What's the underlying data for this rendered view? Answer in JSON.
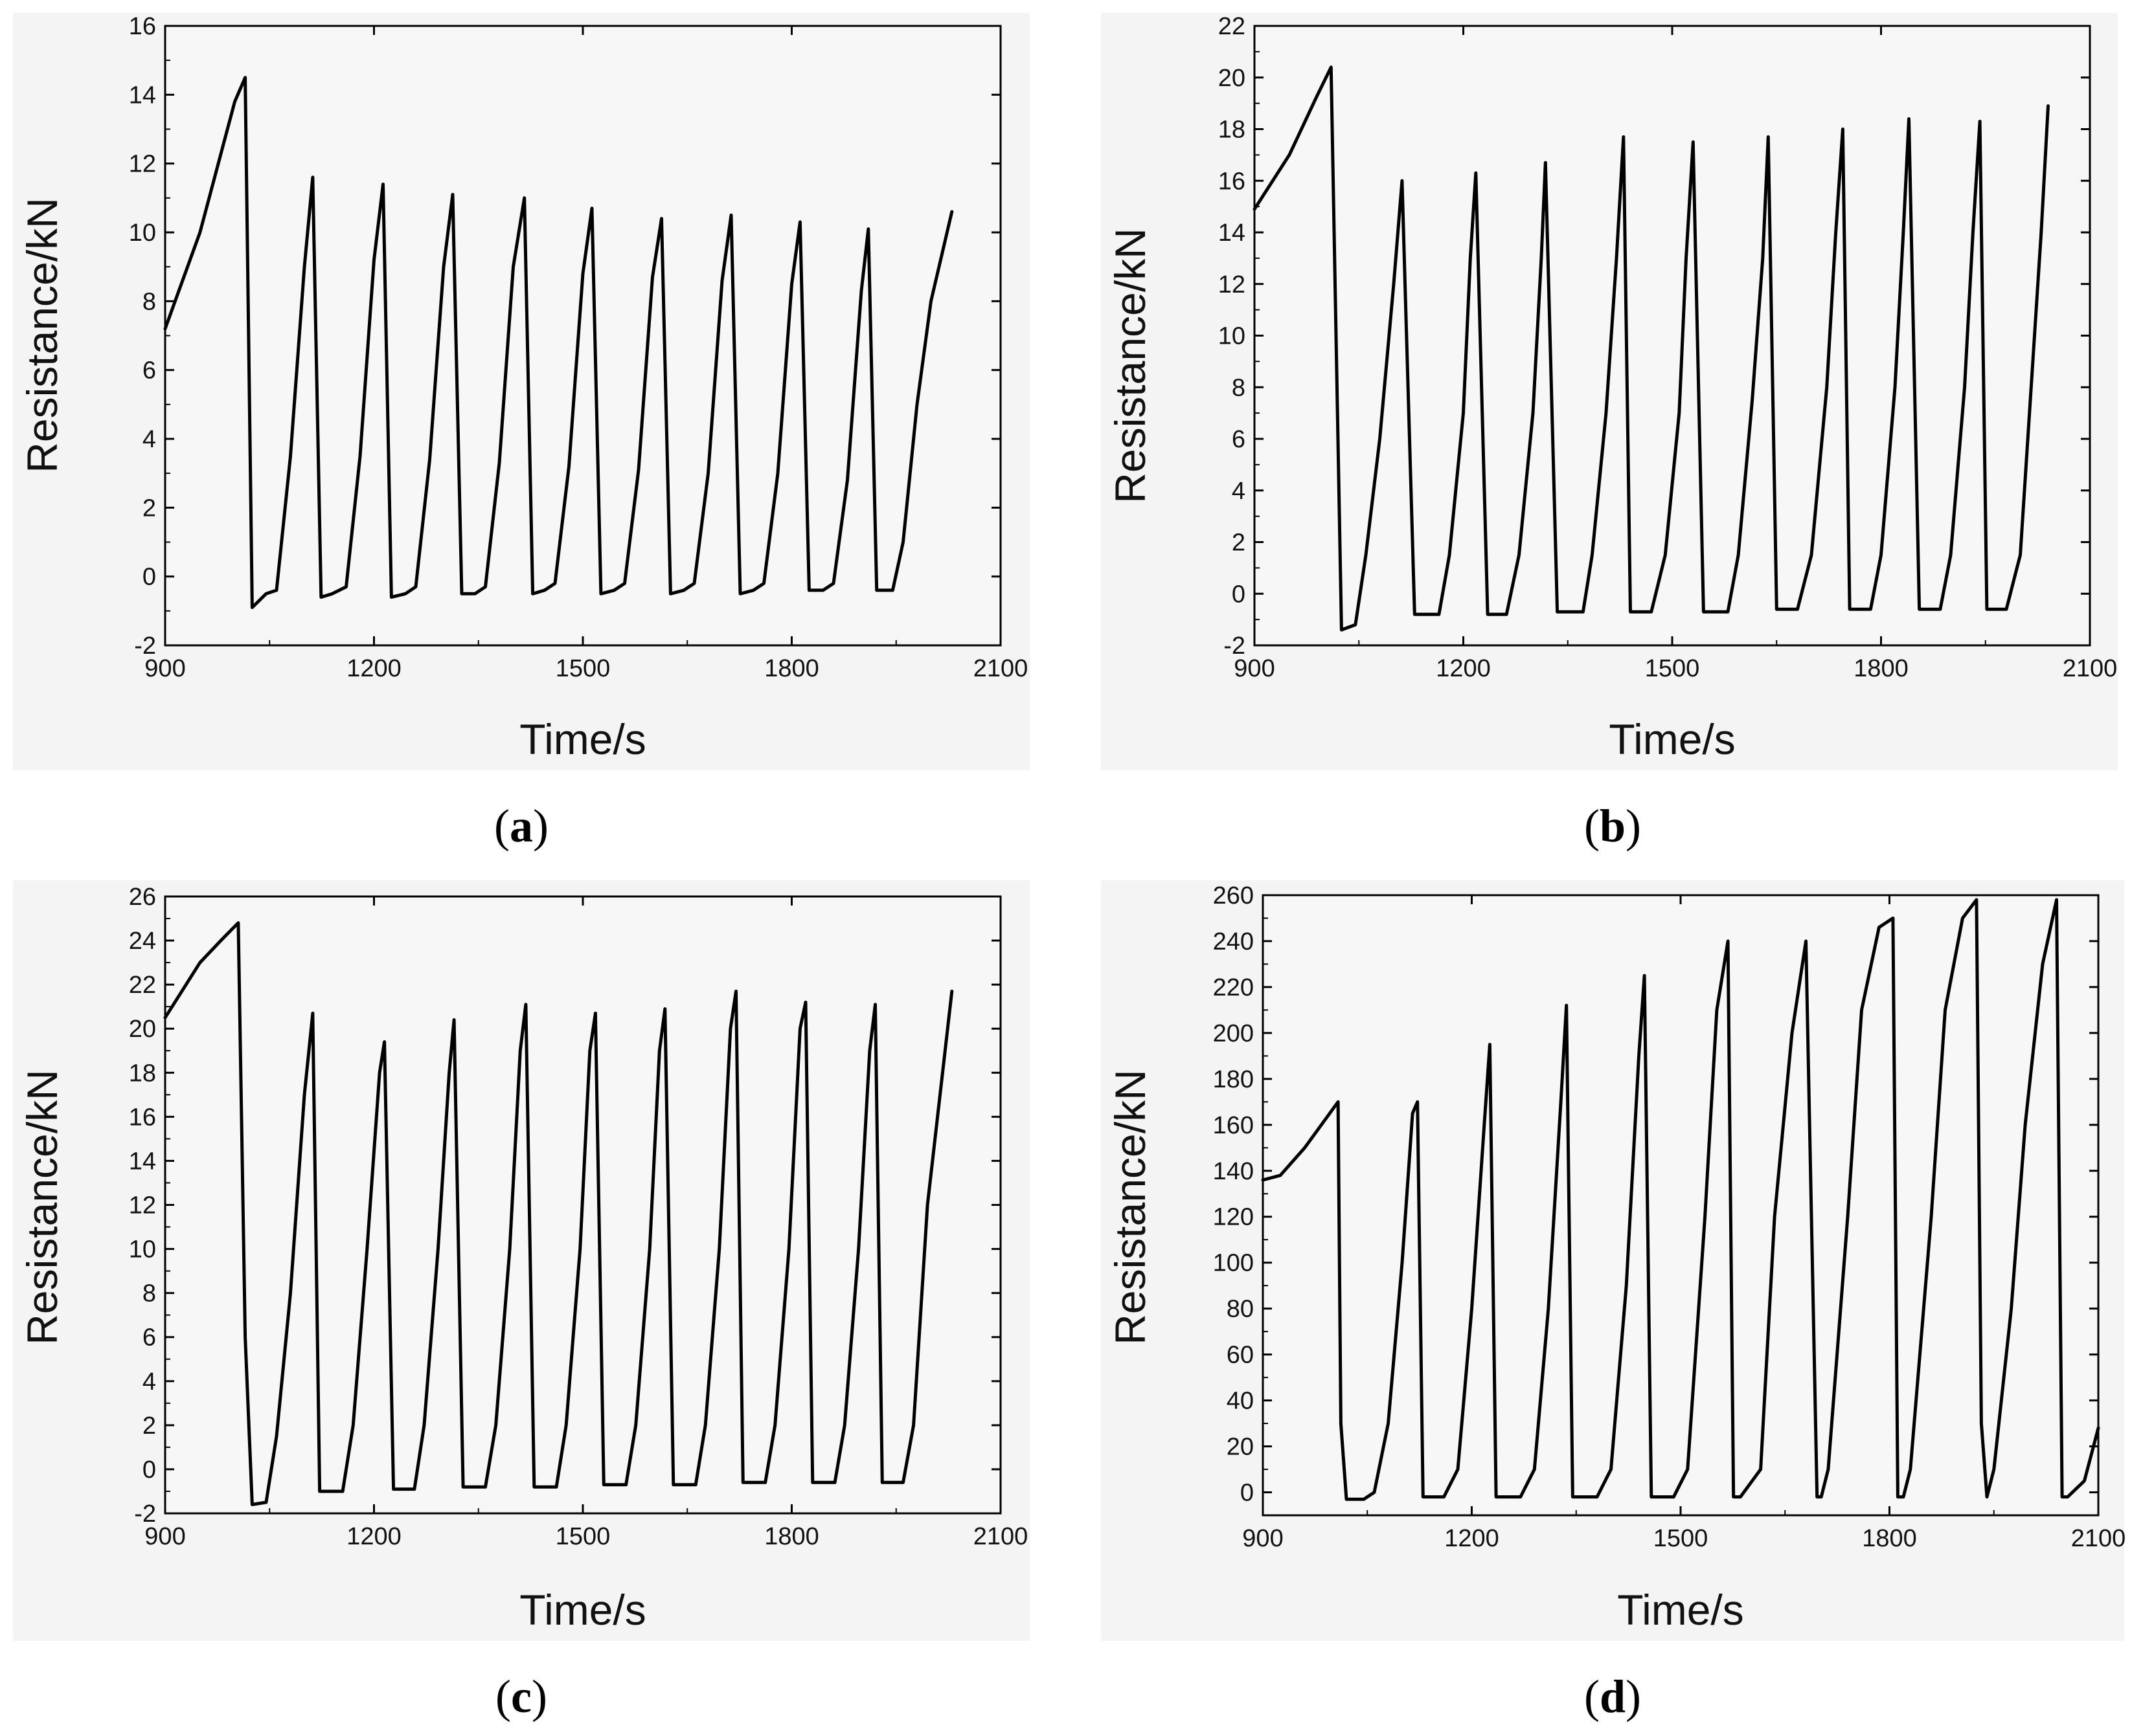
{
  "chart_data": [
    {
      "type": "line",
      "panel": "a",
      "caption_letter": "a",
      "xlabel": "Time/s",
      "ylabel": "Resistance/kN",
      "xlim": [
        900,
        2100
      ],
      "ylim": [
        -2,
        16
      ],
      "xticks": [
        900,
        1200,
        1500,
        1800,
        2100
      ],
      "yticks": [
        -2,
        0,
        2,
        4,
        6,
        8,
        10,
        12,
        14,
        16
      ],
      "series": [
        {
          "name": "Resistance",
          "x": [
            900,
            950,
            1000,
            1015,
            1025,
            1045,
            1060,
            1080,
            1100,
            1112,
            1124,
            1140,
            1160,
            1180,
            1200,
            1213,
            1225,
            1245,
            1260,
            1280,
            1300,
            1313,
            1326,
            1345,
            1360,
            1380,
            1400,
            1416,
            1428,
            1445,
            1460,
            1480,
            1500,
            1513,
            1526,
            1545,
            1560,
            1580,
            1600,
            1613,
            1626,
            1645,
            1660,
            1680,
            1700,
            1713,
            1726,
            1745,
            1760,
            1780,
            1800,
            1812,
            1825,
            1845,
            1860,
            1880,
            1900,
            1910,
            1922,
            1945,
            1960,
            1980,
            2000,
            2030
          ],
          "y": [
            7.2,
            10,
            13.8,
            14.5,
            -0.9,
            -0.5,
            -0.4,
            3.5,
            9,
            11.6,
            -0.6,
            -0.5,
            -0.3,
            3.5,
            9.2,
            11.4,
            -0.6,
            -0.5,
            -0.3,
            3.4,
            9,
            11.1,
            -0.5,
            -0.5,
            -0.3,
            3.3,
            9,
            11.0,
            -0.5,
            -0.4,
            -0.2,
            3.2,
            8.8,
            10.7,
            -0.5,
            -0.4,
            -0.2,
            3.1,
            8.7,
            10.4,
            -0.5,
            -0.4,
            -0.2,
            3.0,
            8.6,
            10.5,
            -0.5,
            -0.4,
            -0.2,
            3.0,
            8.5,
            10.3,
            -0.4,
            -0.4,
            -0.2,
            2.8,
            8.3,
            10.1,
            -0.4,
            -0.4,
            1.0,
            5.0,
            8.0,
            10.6
          ]
        }
      ]
    },
    {
      "type": "line",
      "panel": "b",
      "caption_letter": "b",
      "xlabel": "Time/s",
      "ylabel": "Resistance/kN",
      "xlim": [
        900,
        2100
      ],
      "ylim": [
        -2,
        22
      ],
      "xticks": [
        900,
        1200,
        1500,
        1800,
        2100
      ],
      "yticks": [
        -2,
        0,
        2,
        4,
        6,
        8,
        10,
        12,
        14,
        16,
        18,
        20,
        22
      ],
      "series": [
        {
          "name": "Resistance",
          "x": [
            900,
            950,
            990,
            1010,
            1025,
            1045,
            1060,
            1080,
            1100,
            1112,
            1130,
            1165,
            1180,
            1200,
            1210,
            1218,
            1235,
            1262,
            1280,
            1300,
            1312,
            1318,
            1335,
            1372,
            1385,
            1405,
            1420,
            1430,
            1440,
            1470,
            1490,
            1510,
            1520,
            1530,
            1545,
            1580,
            1595,
            1615,
            1630,
            1638,
            1650,
            1680,
            1700,
            1722,
            1735,
            1745,
            1755,
            1785,
            1800,
            1820,
            1832,
            1840,
            1855,
            1885,
            1900,
            1920,
            1932,
            1942,
            1952,
            1980,
            2000,
            2030,
            2040
          ],
          "y": [
            14.9,
            17,
            19.3,
            20.4,
            -1.4,
            -1.2,
            1.5,
            6,
            12,
            16.0,
            -0.8,
            -0.8,
            1.5,
            7,
            13,
            16.3,
            -0.8,
            -0.8,
            1.5,
            7,
            13,
            16.7,
            -0.7,
            -0.7,
            1.5,
            7,
            13,
            17.7,
            -0.7,
            -0.7,
            1.5,
            7,
            13,
            17.5,
            -0.7,
            -0.7,
            1.5,
            7.5,
            13,
            17.7,
            -0.6,
            -0.6,
            1.5,
            8,
            14,
            18.0,
            -0.6,
            -0.6,
            1.5,
            8,
            14,
            18.4,
            -0.6,
            -0.6,
            1.5,
            8,
            14,
            18.3,
            -0.6,
            -0.6,
            1.5,
            14,
            18.9
          ]
        }
      ]
    },
    {
      "type": "line",
      "panel": "c",
      "caption_letter": "c",
      "xlabel": "Time/s",
      "ylabel": "Resistance/kN",
      "xlim": [
        900,
        2100
      ],
      "ylim": [
        -2,
        26
      ],
      "xticks": [
        900,
        1200,
        1500,
        1800,
        2100
      ],
      "yticks": [
        -2,
        0,
        2,
        4,
        6,
        8,
        10,
        12,
        14,
        16,
        18,
        20,
        22,
        24,
        26
      ],
      "series": [
        {
          "name": "Resistance",
          "x": [
            900,
            950,
            980,
            1005,
            1015,
            1025,
            1045,
            1060,
            1080,
            1100,
            1112,
            1122,
            1155,
            1170,
            1190,
            1208,
            1215,
            1228,
            1258,
            1272,
            1292,
            1308,
            1315,
            1328,
            1360,
            1375,
            1395,
            1410,
            1418,
            1430,
            1462,
            1476,
            1496,
            1510,
            1518,
            1530,
            1562,
            1576,
            1596,
            1610,
            1618,
            1630,
            1662,
            1676,
            1696,
            1712,
            1720,
            1730,
            1762,
            1776,
            1796,
            1812,
            1820,
            1830,
            1862,
            1876,
            1896,
            1912,
            1920,
            1930,
            1960,
            1975,
            1995,
            2030
          ],
          "y": [
            20.5,
            23,
            24,
            24.8,
            6,
            -1.6,
            -1.5,
            1.5,
            8,
            17,
            20.7,
            -1.0,
            -1.0,
            2,
            10,
            18,
            19.4,
            -0.9,
            -0.9,
            2,
            10,
            18,
            20.4,
            -0.8,
            -0.8,
            2,
            10,
            19,
            21.1,
            -0.8,
            -0.8,
            2,
            10,
            19,
            20.7,
            -0.7,
            -0.7,
            2,
            10,
            19,
            20.9,
            -0.7,
            -0.7,
            2,
            10,
            20,
            21.7,
            -0.6,
            -0.6,
            2,
            10,
            20,
            21.2,
            -0.6,
            -0.6,
            2,
            10,
            19,
            21.1,
            -0.6,
            -0.6,
            2,
            12,
            21.7
          ]
        }
      ]
    },
    {
      "type": "line",
      "panel": "d",
      "caption_letter": "d",
      "xlabel": "Time/s",
      "ylabel": "Resistance/kN",
      "xlim": [
        900,
        2100
      ],
      "ylim": [
        -10,
        260
      ],
      "xticks": [
        900,
        1200,
        1500,
        1800,
        2100
      ],
      "yticks": [
        0,
        20,
        40,
        60,
        80,
        100,
        120,
        140,
        160,
        180,
        200,
        220,
        240,
        260
      ],
      "series": [
        {
          "name": "Resistance",
          "x": [
            900,
            925,
            960,
            1008,
            1012,
            1020,
            1045,
            1060,
            1080,
            1100,
            1115,
            1122,
            1130,
            1160,
            1180,
            1200,
            1218,
            1226,
            1235,
            1270,
            1290,
            1310,
            1328,
            1336,
            1345,
            1380,
            1400,
            1422,
            1440,
            1448,
            1458,
            1490,
            1510,
            1535,
            1552,
            1568,
            1576,
            1586,
            1615,
            1635,
            1660,
            1680,
            1696,
            1702,
            1712,
            1740,
            1760,
            1785,
            1805,
            1812,
            1820,
            1830,
            1860,
            1880,
            1905,
            1925,
            1932,
            1940,
            1950,
            1975,
            1995,
            2020,
            2040,
            2048,
            2056,
            2080,
            2100
          ],
          "y": [
            136,
            138,
            150,
            170,
            30,
            -3,
            -3,
            0,
            30,
            100,
            165,
            170,
            -2,
            -2,
            10,
            80,
            160,
            195,
            -2,
            -2,
            10,
            80,
            170,
            212,
            -2,
            -2,
            10,
            90,
            190,
            225,
            -2,
            -2,
            10,
            120,
            210,
            240,
            -2,
            -2,
            10,
            120,
            200,
            240,
            -2,
            -2,
            10,
            120,
            210,
            246,
            250,
            -2,
            -2,
            10,
            120,
            210,
            250,
            258,
            30,
            -2,
            10,
            80,
            160,
            230,
            258,
            -2,
            -2,
            5,
            28
          ]
        }
      ]
    }
  ]
}
